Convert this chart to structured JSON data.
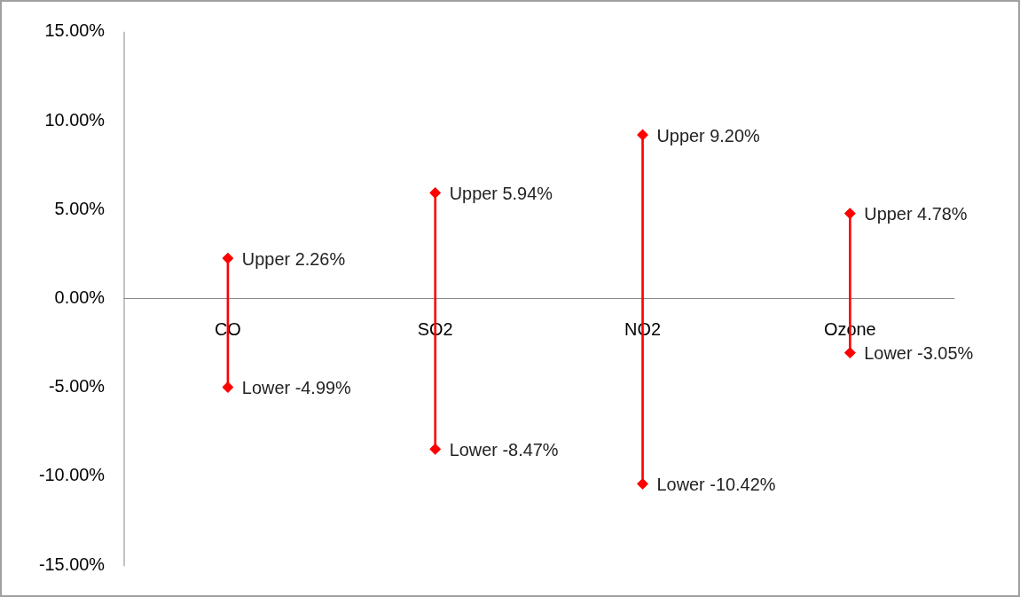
{
  "chart_data": {
    "type": "bar",
    "categories": [
      "CO",
      "SO2",
      "NO2",
      "Ozone"
    ],
    "marker": "diamond",
    "series": [
      {
        "color": "#ff0000",
        "base": [
          -4.99,
          -8.47,
          -10.42,
          -3.05
        ],
        "values": [
          7.25,
          14.41,
          19.62,
          7.83
        ]
      },
      {
        "type": "scatter",
        "color": "#ff0000",
        "values": [
          2.26,
          5.94,
          9.2,
          4.78
        ],
        "value_labels": [
          "Upper 2.26%",
          "Upper 5.94%",
          "Upper 9.20%",
          "Upper 4.78%"
        ]
      },
      {
        "type": "scatter",
        "color": "#ff0000",
        "values": [
          -4.99,
          -8.47,
          -10.42,
          -3.05
        ],
        "value_labels": [
          "Lower -4.99%",
          "Lower -8.47%",
          "Lower -10.42%",
          "Lower -3.05%"
        ]
      }
    ],
    "ylim": [
      -15,
      15
    ],
    "yticks": [
      {
        "value": -15,
        "label": "-15.00%"
      },
      {
        "value": -10,
        "label": "-10.00%"
      },
      {
        "value": -5,
        "label": "-5.00%"
      },
      {
        "value": 0,
        "label": "0.00%"
      },
      {
        "value": 5,
        "label": "5.00%"
      },
      {
        "value": 10,
        "label": "10.00%"
      },
      {
        "value": 15,
        "label": "15.00%"
      }
    ]
  }
}
